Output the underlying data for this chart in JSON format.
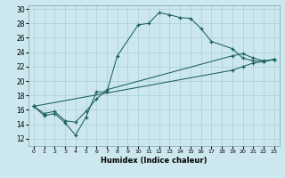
{
  "xlabel": "Humidex (Indice chaleur)",
  "bg_color": "#cce8ee",
  "grid_color": "#aacdd6",
  "line_color": "#1a5f5f",
  "xlim": [
    -0.5,
    23.5
  ],
  "ylim": [
    11,
    30.5
  ],
  "xticks": [
    0,
    1,
    2,
    3,
    4,
    5,
    6,
    7,
    8,
    9,
    10,
    11,
    12,
    13,
    14,
    15,
    16,
    17,
    18,
    19,
    20,
    21,
    22,
    23
  ],
  "yticks": [
    12,
    14,
    16,
    18,
    20,
    22,
    24,
    26,
    28,
    30
  ],
  "line1_x": [
    0,
    1,
    2,
    3,
    4,
    5,
    6,
    7,
    8,
    10,
    11,
    12,
    13,
    14,
    15,
    16,
    17,
    19,
    20,
    21,
    22,
    23
  ],
  "line1_y": [
    16.5,
    15.2,
    15.5,
    14.2,
    12.5,
    15.0,
    18.5,
    18.5,
    23.5,
    27.8,
    28.0,
    29.5,
    29.2,
    28.8,
    28.7,
    27.3,
    25.5,
    24.5,
    23.2,
    22.8,
    22.7,
    23.0
  ],
  "line2_x": [
    0,
    1,
    2,
    3,
    4,
    5,
    6,
    7,
    19,
    20,
    21,
    22,
    23
  ],
  "line2_y": [
    16.5,
    15.5,
    15.8,
    14.5,
    14.3,
    15.8,
    17.5,
    18.8,
    23.5,
    23.8,
    23.2,
    22.8,
    23.0
  ],
  "line3_x": [
    0,
    19,
    20,
    21,
    22,
    23
  ],
  "line3_y": [
    16.5,
    21.5,
    22.0,
    22.5,
    22.7,
    23.0
  ]
}
